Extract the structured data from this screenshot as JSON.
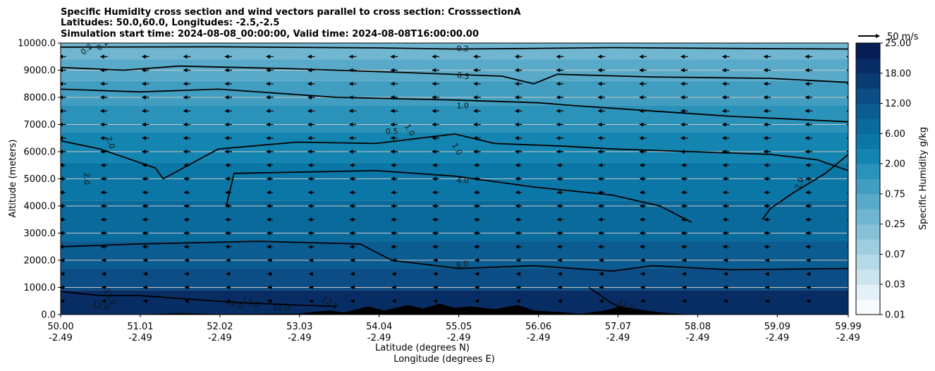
{
  "chart_data": {
    "type": "heatmap",
    "title_lines": [
      "Specific Humidity cross section and wind vectors parallel to cross section: CrosssectionA",
      "Latitudes: 50.0,60.0, Longitudes: -2.5,-2.5",
      "Simulation start time: 2024-08-08_00:00:00, Valid time: 2024-08-08T16:00:00.00"
    ],
    "xlabel": "Latitude (degrees N)",
    "xlabel2": "Longitude (degrees E)",
    "ylabel": "Altitude (meters)",
    "xlim": [
      50.0,
      59.99
    ],
    "ylim": [
      0,
      10000
    ],
    "x_ticks": [
      {
        "lat": "50.00",
        "lon": "-2.49",
        "value": 50.0
      },
      {
        "lat": "51.01",
        "lon": "-2.49",
        "value": 51.01
      },
      {
        "lat": "52.02",
        "lon": "-2.49",
        "value": 52.02
      },
      {
        "lat": "53.03",
        "lon": "-2.49",
        "value": 53.03
      },
      {
        "lat": "54.04",
        "lon": "-2.49",
        "value": 54.04
      },
      {
        "lat": "55.05",
        "lon": "-2.49",
        "value": 55.05
      },
      {
        "lat": "56.06",
        "lon": "-2.49",
        "value": 56.06
      },
      {
        "lat": "57.07",
        "lon": "-2.49",
        "value": 57.07
      },
      {
        "lat": "58.08",
        "lon": "-2.49",
        "value": 58.08
      },
      {
        "lat": "59.09",
        "lon": "-2.49",
        "value": 59.09
      },
      {
        "lat": "59.99",
        "lon": "-2.49",
        "value": 59.99
      }
    ],
    "y_ticks": [
      "0.0",
      "1000.0",
      "2000.0",
      "3000.0",
      "4000.0",
      "5000.0",
      "6000.0",
      "7000.0",
      "8000.0",
      "9000.0",
      "10000.0"
    ],
    "y_tick_values": [
      0,
      1000,
      2000,
      3000,
      4000,
      5000,
      6000,
      7000,
      8000,
      9000,
      10000
    ],
    "grid": "horizontal",
    "colorbar": {
      "label": "Specific Humidity g/kg",
      "tick_labels": [
        "0.01",
        "0.03",
        "0.07",
        "0.25",
        "0.75",
        "2.00",
        "6.00",
        "12.00",
        "18.00",
        "25.00"
      ],
      "levels": [
        0.01,
        0.02,
        0.03,
        0.05,
        0.07,
        0.1,
        0.25,
        0.5,
        0.75,
        1.0,
        2.0,
        4.0,
        6.0,
        8.0,
        12.0,
        15.0,
        18.0,
        22.0,
        25.0
      ],
      "colors": [
        "#f7fbfd",
        "#e3f0f5",
        "#cce4ee",
        "#b5d9e7",
        "#9ecde0",
        "#87c1d8",
        "#70b6d1",
        "#59aac9",
        "#429ec1",
        "#2b92b9",
        "#1485b0",
        "#0a77a6",
        "#0a6a9b",
        "#0b5c91",
        "#0b4d84",
        "#0a3c74",
        "#082d64",
        "#061e53"
      ]
    },
    "quiver_key": {
      "label": "50 m/s",
      "magnitude": 50
    },
    "wind_vectors": {
      "direction": "toward decreasing latitude",
      "typical_speed_upper_ms": 16,
      "typical_speed_lower_ms": 10
    },
    "contour_labels": [
      "0.2",
      "0.2",
      "0.2",
      "0.5",
      "0.5",
      "1.0",
      "1.0",
      "1.0",
      "2.0",
      "2.0",
      "2.0",
      "4.0",
      "8.0",
      "12.0",
      "12.0",
      "12.0",
      "12.0",
      "12.0",
      "12.0",
      "12.0"
    ],
    "contour_lines": [
      {
        "level": 0.2,
        "points": [
          [
            50.0,
            9850
          ],
          [
            52.0,
            9860
          ],
          [
            54.0,
            9820
          ],
          [
            55.0,
            9780
          ],
          [
            56.0,
            9800
          ],
          [
            57.0,
            9830
          ],
          [
            58.5,
            9800
          ],
          [
            59.99,
            9780
          ]
        ]
      },
      {
        "level": 0.5,
        "points": [
          [
            50.0,
            9100
          ],
          [
            50.8,
            9000
          ],
          [
            51.5,
            9150
          ],
          [
            53.0,
            9050
          ],
          [
            54.5,
            8900
          ],
          [
            55.6,
            8780
          ],
          [
            56.0,
            8500
          ],
          [
            56.3,
            8850
          ],
          [
            57.5,
            8750
          ],
          [
            59.0,
            8700
          ],
          [
            59.99,
            8550
          ]
        ]
      },
      {
        "level": 1.0,
        "points": [
          [
            50.0,
            8300
          ],
          [
            51.0,
            8200
          ],
          [
            52.0,
            8300
          ],
          [
            53.5,
            8000
          ],
          [
            55.0,
            7900
          ],
          [
            56.06,
            7800
          ],
          [
            56.5,
            7700
          ],
          [
            57.5,
            7500
          ],
          [
            58.5,
            7300
          ],
          [
            59.99,
            7100
          ]
        ]
      },
      {
        "level": 2.0,
        "points": [
          [
            50.0,
            6400
          ],
          [
            50.5,
            6100
          ],
          [
            51.2,
            5400
          ],
          [
            51.3,
            5000
          ],
          [
            52.0,
            6100
          ],
          [
            53.0,
            6350
          ],
          [
            54.0,
            6300
          ],
          [
            55.0,
            6650
          ],
          [
            55.5,
            6300
          ],
          [
            56.4,
            6200
          ],
          [
            57.0,
            6100
          ],
          [
            58.0,
            6000
          ],
          [
            59.0,
            5900
          ],
          [
            59.6,
            5700
          ],
          [
            59.99,
            5300
          ]
        ]
      },
      {
        "level": 2.0,
        "points": [
          [
            59.99,
            5900
          ],
          [
            59.7,
            5200
          ],
          [
            59.3,
            4500
          ],
          [
            59.0,
            3900
          ],
          [
            58.9,
            3500
          ]
        ]
      },
      {
        "level": 4.0,
        "points": [
          [
            52.1,
            4000
          ],
          [
            52.2,
            5200
          ],
          [
            54.0,
            5300
          ],
          [
            55.0,
            5100
          ],
          [
            56.0,
            4700
          ],
          [
            57.0,
            4400
          ],
          [
            57.6,
            4000
          ],
          [
            58.0,
            3400
          ]
        ]
      },
      {
        "level": 8.0,
        "points": [
          [
            50.0,
            2500
          ],
          [
            51.0,
            2600
          ],
          [
            52.5,
            2700
          ],
          [
            53.8,
            2600
          ],
          [
            54.2,
            2000
          ],
          [
            55.05,
            1700
          ],
          [
            56.0,
            1800
          ],
          [
            57.0,
            1600
          ],
          [
            57.5,
            1800
          ],
          [
            58.5,
            1650
          ],
          [
            59.99,
            1700
          ]
        ]
      },
      {
        "level": 12.0,
        "points": [
          [
            50.0,
            850
          ],
          [
            50.5,
            700
          ],
          [
            51.0,
            700
          ],
          [
            52.2,
            450
          ],
          [
            53.0,
            350
          ],
          [
            53.5,
            300
          ]
        ]
      },
      {
        "level": 12.0,
        "points": [
          [
            56.7,
            1000
          ],
          [
            57.0,
            400
          ],
          [
            57.2,
            150
          ]
        ]
      }
    ],
    "terrain_peak_m": 600
  }
}
